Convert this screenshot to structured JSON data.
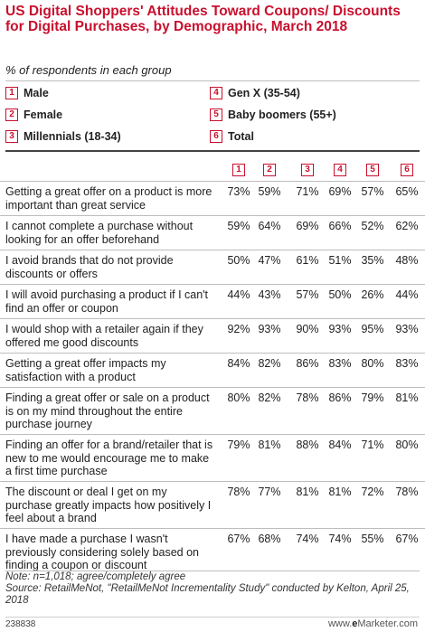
{
  "chart_data": {
    "type": "table",
    "title": "US Digital Shoppers' Attitudes Toward Coupons/ Discounts for Digital Purchases, by Demographic, March 2018",
    "subtitle": "% of respondents in each group",
    "legend": [
      {
        "key": "1",
        "label": "Male"
      },
      {
        "key": "2",
        "label": "Female"
      },
      {
        "key": "3",
        "label": "Millennials (18-34)"
      },
      {
        "key": "4",
        "label": "Gen X (35-54)"
      },
      {
        "key": "5",
        "label": "Baby boomers (55+)"
      },
      {
        "key": "6",
        "label": "Total"
      }
    ],
    "columns": [
      "1",
      "2",
      "3",
      "4",
      "5",
      "6"
    ],
    "rows": [
      {
        "label": "Getting a great offer on a product is more important than great service",
        "values": [
          "73%",
          "59%",
          "71%",
          "69%",
          "57%",
          "65%"
        ]
      },
      {
        "label": "I cannot complete a purchase without looking for an offer beforehand",
        "values": [
          "59%",
          "64%",
          "69%",
          "66%",
          "52%",
          "62%"
        ]
      },
      {
        "label": "I avoid brands that do not provide discounts or offers",
        "values": [
          "50%",
          "47%",
          "61%",
          "51%",
          "35%",
          "48%"
        ]
      },
      {
        "label": "I will avoid purchasing a product if I can't find an offer or coupon",
        "values": [
          "44%",
          "43%",
          "57%",
          "50%",
          "26%",
          "44%"
        ]
      },
      {
        "label": "I would shop with a retailer again if they offered me good discounts",
        "values": [
          "92%",
          "93%",
          "90%",
          "93%",
          "95%",
          "93%"
        ]
      },
      {
        "label": "Getting a great offer impacts my satisfaction with a product",
        "values": [
          "84%",
          "82%",
          "86%",
          "83%",
          "80%",
          "83%"
        ]
      },
      {
        "label": "Finding a great offer or sale on a product is on my mind throughout the entire purchase journey",
        "values": [
          "80%",
          "82%",
          "78%",
          "86%",
          "79%",
          "81%"
        ]
      },
      {
        "label": "Finding an offer for a brand/retailer that is new to me would encourage me to make a first time purchase",
        "values": [
          "79%",
          "81%",
          "88%",
          "84%",
          "71%",
          "80%"
        ]
      },
      {
        "label": "The discount or deal I get on my purchase greatly impacts how positively I feel about a brand",
        "values": [
          "78%",
          "77%",
          "81%",
          "81%",
          "72%",
          "78%"
        ]
      },
      {
        "label": "I have made a purchase I wasn't previously considering solely based on finding a coupon or discount",
        "values": [
          "67%",
          "68%",
          "74%",
          "74%",
          "55%",
          "67%"
        ]
      }
    ]
  },
  "note": "Note: n=1,018; agree/completely agree",
  "source": "Source: RetailMeNot, \"RetailMeNot Incrementality Study\" conducted by Kelton, April 25, 2018",
  "chart_id": "238838",
  "brand": {
    "prefix": "www.",
    "bold": "e",
    "suffix": "Marketer.com"
  },
  "colors": {
    "accent": "#c8102e",
    "text": "#222222",
    "rule": "#bdbdbd"
  }
}
